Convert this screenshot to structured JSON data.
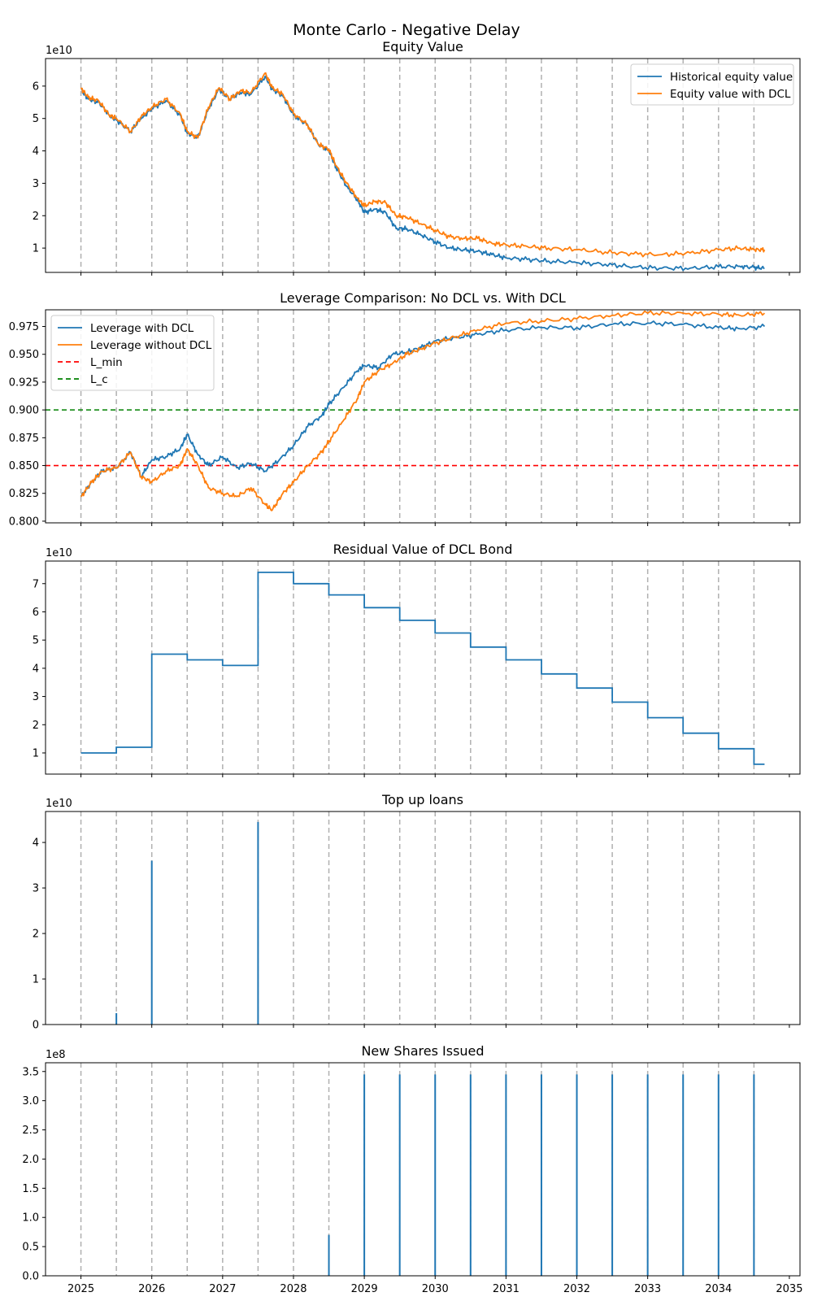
{
  "figure": {
    "suptitle": "Monte Carlo - Negative Delay"
  },
  "x_axis": {
    "ticks": [
      2025,
      2026,
      2027,
      2028,
      2029,
      2030,
      2031,
      2032,
      2033,
      2034,
      2035
    ],
    "tick_labels": [
      "2025",
      "2026",
      "2027",
      "2028",
      "2029",
      "2030",
      "2031",
      "2032",
      "2033",
      "2034",
      "2035"
    ],
    "xlim": [
      2024.5,
      2035.15
    ]
  },
  "event_dates": [
    2025.0,
    2025.5,
    2026.0,
    2026.5,
    2027.0,
    2027.5,
    2028.0,
    2028.5,
    2029.0,
    2029.5,
    2030.0,
    2030.5,
    2031.0,
    2031.5,
    2032.0,
    2032.5,
    2033.0,
    2033.5,
    2034.0,
    2034.5
  ],
  "colors": {
    "blue": "#1f77b4",
    "orange": "#ff7f0e",
    "red": "#ff0000",
    "green": "#008000",
    "event_line": "#b0b0b0"
  },
  "chart_data": [
    {
      "id": "equity",
      "type": "line",
      "title": "Equity Value",
      "offset_text": "1e10",
      "ylim": [
        0.25,
        6.85
      ],
      "yticks": [
        1,
        2,
        3,
        4,
        5,
        6
      ],
      "legend_position": "upper right",
      "series": [
        {
          "name": "Historical equity value",
          "color": "#1f77b4",
          "points": [
            [
              2025.0,
              5.9
            ],
            [
              2025.1,
              5.6
            ],
            [
              2025.25,
              5.5
            ],
            [
              2025.4,
              5.1
            ],
            [
              2025.5,
              4.95
            ],
            [
              2025.7,
              4.6
            ],
            [
              2025.85,
              5.0
            ],
            [
              2026.0,
              5.3
            ],
            [
              2026.2,
              5.55
            ],
            [
              2026.4,
              5.1
            ],
            [
              2026.5,
              4.55
            ],
            [
              2026.65,
              4.4
            ],
            [
              2026.8,
              5.3
            ],
            [
              2026.95,
              5.9
            ],
            [
              2027.1,
              5.6
            ],
            [
              2027.25,
              5.8
            ],
            [
              2027.4,
              5.75
            ],
            [
              2027.6,
              6.3
            ],
            [
              2027.7,
              5.9
            ],
            [
              2027.85,
              5.7
            ],
            [
              2028.0,
              5.1
            ],
            [
              2028.2,
              4.8
            ],
            [
              2028.35,
              4.2
            ],
            [
              2028.5,
              4.0
            ],
            [
              2028.6,
              3.5
            ],
            [
              2028.75,
              2.9
            ],
            [
              2028.9,
              2.5
            ],
            [
              2029.0,
              2.1
            ],
            [
              2029.15,
              2.2
            ],
            [
              2029.3,
              2.1
            ],
            [
              2029.45,
              1.6
            ],
            [
              2029.6,
              1.6
            ],
            [
              2029.8,
              1.4
            ],
            [
              2030.0,
              1.2
            ],
            [
              2030.2,
              1.0
            ],
            [
              2030.4,
              0.95
            ],
            [
              2030.6,
              0.9
            ],
            [
              2030.8,
              0.8
            ],
            [
              2031.0,
              0.7
            ],
            [
              2031.3,
              0.65
            ],
            [
              2031.6,
              0.6
            ],
            [
              2032.0,
              0.55
            ],
            [
              2032.4,
              0.5
            ],
            [
              2032.8,
              0.42
            ],
            [
              2033.2,
              0.38
            ],
            [
              2033.6,
              0.38
            ],
            [
              2034.0,
              0.42
            ],
            [
              2034.3,
              0.44
            ],
            [
              2034.5,
              0.4
            ],
            [
              2034.65,
              0.38
            ]
          ]
        },
        {
          "name": "Equity value with DCL",
          "color": "#ff7f0e",
          "points": [
            [
              2025.0,
              5.95
            ],
            [
              2025.1,
              5.65
            ],
            [
              2025.25,
              5.55
            ],
            [
              2025.4,
              5.1
            ],
            [
              2025.5,
              5.0
            ],
            [
              2025.7,
              4.6
            ],
            [
              2025.85,
              5.05
            ],
            [
              2026.0,
              5.35
            ],
            [
              2026.2,
              5.6
            ],
            [
              2026.4,
              5.15
            ],
            [
              2026.5,
              4.6
            ],
            [
              2026.65,
              4.4
            ],
            [
              2026.8,
              5.35
            ],
            [
              2026.95,
              5.95
            ],
            [
              2027.1,
              5.6
            ],
            [
              2027.25,
              5.85
            ],
            [
              2027.4,
              5.8
            ],
            [
              2027.6,
              6.4
            ],
            [
              2027.7,
              5.95
            ],
            [
              2027.85,
              5.75
            ],
            [
              2028.0,
              5.15
            ],
            [
              2028.2,
              4.8
            ],
            [
              2028.35,
              4.2
            ],
            [
              2028.5,
              4.05
            ],
            [
              2028.6,
              3.55
            ],
            [
              2028.75,
              3.0
            ],
            [
              2028.9,
              2.55
            ],
            [
              2029.0,
              2.3
            ],
            [
              2029.15,
              2.45
            ],
            [
              2029.3,
              2.4
            ],
            [
              2029.45,
              2.0
            ],
            [
              2029.6,
              1.95
            ],
            [
              2029.8,
              1.75
            ],
            [
              2030.0,
              1.55
            ],
            [
              2030.2,
              1.35
            ],
            [
              2030.4,
              1.3
            ],
            [
              2030.6,
              1.3
            ],
            [
              2030.8,
              1.15
            ],
            [
              2031.0,
              1.1
            ],
            [
              2031.3,
              1.05
            ],
            [
              2031.6,
              1.0
            ],
            [
              2032.0,
              0.95
            ],
            [
              2032.4,
              0.88
            ],
            [
              2032.8,
              0.82
            ],
            [
              2033.2,
              0.8
            ],
            [
              2033.6,
              0.85
            ],
            [
              2034.0,
              0.95
            ],
            [
              2034.3,
              1.0
            ],
            [
              2034.5,
              0.95
            ],
            [
              2034.65,
              0.95
            ]
          ]
        }
      ]
    },
    {
      "id": "leverage",
      "type": "line",
      "title": "Leverage Comparison: No DCL vs. With DCL",
      "ylim": [
        0.7985,
        0.99
      ],
      "yticks": [
        0.8,
        0.825,
        0.85,
        0.875,
        0.9,
        0.925,
        0.95,
        0.975
      ],
      "ytick_labels": [
        "0.800",
        "0.825",
        "0.850",
        "0.875",
        "0.900",
        "0.925",
        "0.950",
        "0.975"
      ],
      "legend_position": "upper left",
      "hlines": [
        {
          "name": "L_min",
          "y": 0.85,
          "color": "#ff0000"
        },
        {
          "name": "L_c",
          "y": 0.9,
          "color": "#008000"
        }
      ],
      "series": [
        {
          "name": "Leverage with DCL",
          "color": "#1f77b4",
          "points": [
            [
              2025.0,
              0.822
            ],
            [
              2025.15,
              0.835
            ],
            [
              2025.3,
              0.845
            ],
            [
              2025.5,
              0.848
            ],
            [
              2025.7,
              0.862
            ],
            [
              2025.85,
              0.84
            ],
            [
              2026.0,
              0.855
            ],
            [
              2026.2,
              0.858
            ],
            [
              2026.4,
              0.865
            ],
            [
              2026.5,
              0.878
            ],
            [
              2026.65,
              0.86
            ],
            [
              2026.8,
              0.85
            ],
            [
              2027.0,
              0.858
            ],
            [
              2027.2,
              0.848
            ],
            [
              2027.4,
              0.852
            ],
            [
              2027.6,
              0.845
            ],
            [
              2027.8,
              0.855
            ],
            [
              2028.0,
              0.868
            ],
            [
              2028.2,
              0.885
            ],
            [
              2028.4,
              0.895
            ],
            [
              2028.5,
              0.905
            ],
            [
              2028.7,
              0.92
            ],
            [
              2028.9,
              0.935
            ],
            [
              2029.0,
              0.94
            ],
            [
              2029.2,
              0.938
            ],
            [
              2029.4,
              0.95
            ],
            [
              2029.6,
              0.952
            ],
            [
              2029.8,
              0.956
            ],
            [
              2030.0,
              0.962
            ],
            [
              2030.3,
              0.965
            ],
            [
              2030.6,
              0.968
            ],
            [
              2031.0,
              0.972
            ],
            [
              2031.5,
              0.974
            ],
            [
              2032.0,
              0.974
            ],
            [
              2032.5,
              0.977
            ],
            [
              2033.0,
              0.978
            ],
            [
              2033.5,
              0.977
            ],
            [
              2034.0,
              0.974
            ],
            [
              2034.3,
              0.973
            ],
            [
              2034.65,
              0.975
            ]
          ]
        },
        {
          "name": "Leverage without DCL",
          "color": "#ff7f0e",
          "points": [
            [
              2025.0,
              0.822
            ],
            [
              2025.15,
              0.835
            ],
            [
              2025.3,
              0.845
            ],
            [
              2025.5,
              0.848
            ],
            [
              2025.7,
              0.862
            ],
            [
              2025.85,
              0.84
            ],
            [
              2026.0,
              0.835
            ],
            [
              2026.2,
              0.845
            ],
            [
              2026.4,
              0.85
            ],
            [
              2026.5,
              0.865
            ],
            [
              2026.65,
              0.85
            ],
            [
              2026.8,
              0.83
            ],
            [
              2027.0,
              0.825
            ],
            [
              2027.2,
              0.822
            ],
            [
              2027.4,
              0.83
            ],
            [
              2027.6,
              0.815
            ],
            [
              2027.7,
              0.81
            ],
            [
              2027.85,
              0.825
            ],
            [
              2028.0,
              0.835
            ],
            [
              2028.2,
              0.85
            ],
            [
              2028.4,
              0.862
            ],
            [
              2028.5,
              0.872
            ],
            [
              2028.7,
              0.89
            ],
            [
              2028.9,
              0.91
            ],
            [
              2029.0,
              0.925
            ],
            [
              2029.2,
              0.935
            ],
            [
              2029.4,
              0.942
            ],
            [
              2029.6,
              0.95
            ],
            [
              2029.8,
              0.955
            ],
            [
              2030.0,
              0.96
            ],
            [
              2030.3,
              0.966
            ],
            [
              2030.6,
              0.972
            ],
            [
              2031.0,
              0.978
            ],
            [
              2031.5,
              0.98
            ],
            [
              2032.0,
              0.982
            ],
            [
              2032.5,
              0.985
            ],
            [
              2033.0,
              0.987
            ],
            [
              2033.5,
              0.987
            ],
            [
              2034.0,
              0.986
            ],
            [
              2034.3,
              0.985
            ],
            [
              2034.65,
              0.987
            ]
          ]
        }
      ]
    },
    {
      "id": "residual",
      "type": "step",
      "title": "Residual Value of DCL Bond",
      "offset_text": "1e10",
      "ylim": [
        0.25,
        7.8
      ],
      "yticks": [
        1,
        2,
        3,
        4,
        5,
        6,
        7
      ],
      "series": [
        {
          "name": "",
          "color": "#1f77b4",
          "steps": [
            [
              2025.0,
              1.0
            ],
            [
              2025.5,
              1.2
            ],
            [
              2026.0,
              4.5
            ],
            [
              2026.5,
              4.3
            ],
            [
              2027.0,
              4.1
            ],
            [
              2027.5,
              7.4
            ],
            [
              2028.0,
              7.0
            ],
            [
              2028.5,
              6.6
            ],
            [
              2029.0,
              6.15
            ],
            [
              2029.5,
              5.7
            ],
            [
              2030.0,
              5.25
            ],
            [
              2030.5,
              4.75
            ],
            [
              2031.0,
              4.3
            ],
            [
              2031.5,
              3.8
            ],
            [
              2032.0,
              3.3
            ],
            [
              2032.5,
              2.8
            ],
            [
              2033.0,
              2.25
            ],
            [
              2033.5,
              1.7
            ],
            [
              2034.0,
              1.15
            ],
            [
              2034.5,
              0.6
            ]
          ],
          "end_x": 2034.65
        }
      ]
    },
    {
      "id": "topup",
      "type": "spike",
      "title": "Top up loans",
      "offset_text": "1e10",
      "ylim": [
        0,
        4.68
      ],
      "yticks": [
        0,
        1,
        2,
        3,
        4
      ],
      "series": [
        {
          "name": "",
          "color": "#1f77b4",
          "spikes": [
            [
              2025.5,
              0.25
            ],
            [
              2026.0,
              3.6
            ],
            [
              2027.5,
              4.45
            ]
          ]
        }
      ]
    },
    {
      "id": "shares",
      "type": "spike",
      "title": "New Shares Issued",
      "offset_text": "1e8",
      "ylim": [
        0,
        3.65
      ],
      "yticks": [
        0,
        0.5,
        1,
        1.5,
        2,
        2.5,
        3,
        3.5
      ],
      "ytick_labels": [
        "0.0",
        "0.5",
        "1.0",
        "1.5",
        "2.0",
        "2.5",
        "3.0",
        "3.5"
      ],
      "series": [
        {
          "name": "",
          "color": "#1f77b4",
          "spikes": [
            [
              2028.5,
              0.7
            ],
            [
              2029.0,
              3.45
            ],
            [
              2029.5,
              3.45
            ],
            [
              2030.0,
              3.45
            ],
            [
              2030.5,
              3.45
            ],
            [
              2031.0,
              3.45
            ],
            [
              2031.5,
              3.45
            ],
            [
              2032.0,
              3.45
            ],
            [
              2032.5,
              3.45
            ],
            [
              2033.0,
              3.45
            ],
            [
              2033.5,
              3.45
            ],
            [
              2034.0,
              3.45
            ],
            [
              2034.5,
              3.45
            ]
          ]
        }
      ]
    }
  ]
}
